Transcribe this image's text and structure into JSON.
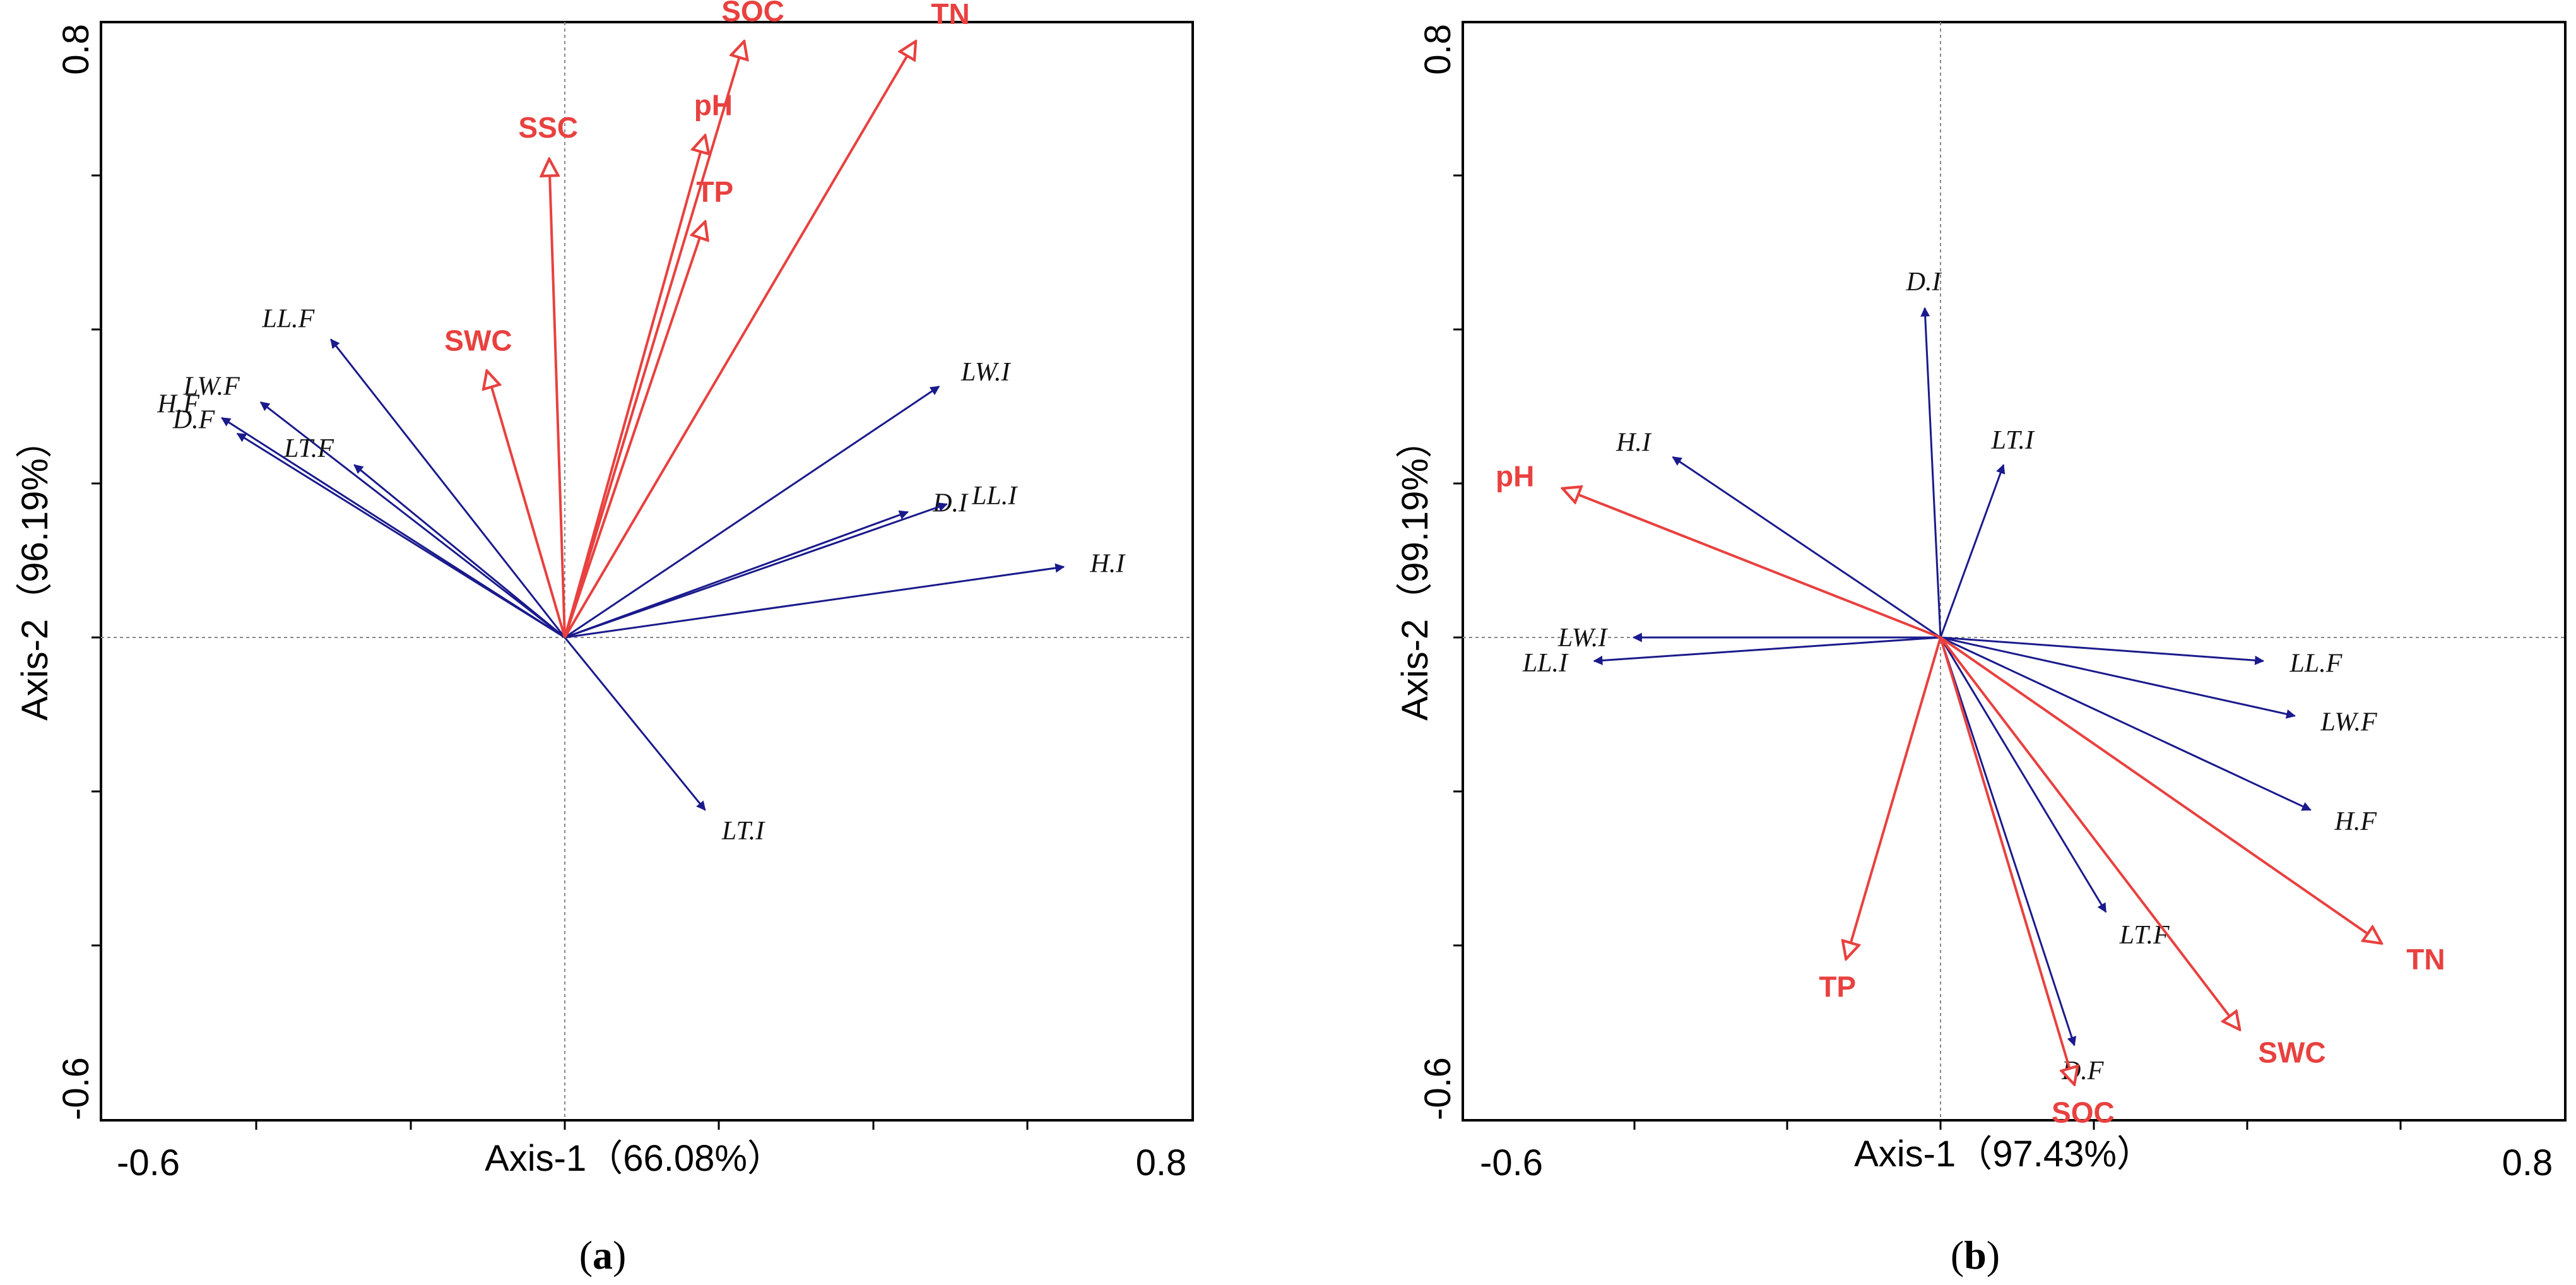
{
  "colors": {
    "env": "#e8413f",
    "trait": "#1a1a8c",
    "frame": "#000000",
    "guide": "#888888"
  },
  "chart_data": [
    {
      "type": "biplot",
      "panel": "a",
      "panel_label": "a",
      "xlabel": "Axis-1（66.08%）",
      "ylabel": "Axis-2（96.19%）",
      "xlim": [
        -0.6,
        0.8
      ],
      "ylim": [
        -0.6,
        0.8
      ],
      "x_ticks": [
        "-0.6",
        "0.8"
      ],
      "y_ticks": [
        "0.8",
        "-0.6"
      ],
      "env_vectors": [
        {
          "name": "SSC",
          "x": -0.02,
          "y": 0.61
        },
        {
          "name": "pH",
          "x": 0.18,
          "y": 0.64
        },
        {
          "name": "SOC",
          "x": 0.23,
          "y": 0.76
        },
        {
          "name": "TN",
          "x": 0.45,
          "y": 0.76
        },
        {
          "name": "TP",
          "x": 0.18,
          "y": 0.53
        },
        {
          "name": "SWC",
          "x": -0.1,
          "y": 0.34
        }
      ],
      "trait_vectors": [
        {
          "name": "LL.F",
          "x": -0.3,
          "y": 0.38
        },
        {
          "name": "LW.F",
          "x": -0.39,
          "y": 0.3
        },
        {
          "name": "H.F",
          "x": -0.44,
          "y": 0.28
        },
        {
          "name": "D.F",
          "x": -0.42,
          "y": 0.26
        },
        {
          "name": "LT.F",
          "x": -0.27,
          "y": 0.22
        },
        {
          "name": "LW.I",
          "x": 0.48,
          "y": 0.32
        },
        {
          "name": "D.I",
          "x": 0.44,
          "y": 0.16
        },
        {
          "name": "LL.I",
          "x": 0.49,
          "y": 0.17
        },
        {
          "name": "H.I",
          "x": 0.64,
          "y": 0.09
        },
        {
          "name": "LT.I",
          "x": 0.18,
          "y": -0.22
        }
      ]
    },
    {
      "type": "biplot",
      "panel": "b",
      "panel_label": "b",
      "xlabel": "Axis-1（97.43%）",
      "ylabel": "Axis-2（99.19%）",
      "xlim": [
        -0.6,
        0.8
      ],
      "ylim": [
        -0.6,
        0.8
      ],
      "x_ticks": [
        "-0.6",
        "0.8"
      ],
      "y_ticks": [
        "0.8",
        "-0.6"
      ],
      "env_vectors": [
        {
          "name": "pH",
          "x": -0.48,
          "y": 0.19
        },
        {
          "name": "TP",
          "x": -0.12,
          "y": -0.41
        },
        {
          "name": "SOC",
          "x": 0.17,
          "y": -0.57
        },
        {
          "name": "SWC",
          "x": 0.38,
          "y": -0.5
        },
        {
          "name": "TN",
          "x": 0.56,
          "y": -0.39
        }
      ],
      "trait_vectors": [
        {
          "name": "D.I",
          "x": -0.02,
          "y": 0.42
        },
        {
          "name": "H.I",
          "x": -0.34,
          "y": 0.23
        },
        {
          "name": "LT.I",
          "x": 0.08,
          "y": 0.22
        },
        {
          "name": "LW.I",
          "x": -0.39,
          "y": 0.0
        },
        {
          "name": "LL.I",
          "x": -0.44,
          "y": -0.03
        },
        {
          "name": "LL.F",
          "x": 0.41,
          "y": -0.03
        },
        {
          "name": "LW.F",
          "x": 0.45,
          "y": -0.1
        },
        {
          "name": "H.F",
          "x": 0.47,
          "y": -0.22
        },
        {
          "name": "LT.F",
          "x": 0.21,
          "y": -0.35
        },
        {
          "name": "D.F",
          "x": 0.17,
          "y": -0.52
        }
      ]
    }
  ]
}
